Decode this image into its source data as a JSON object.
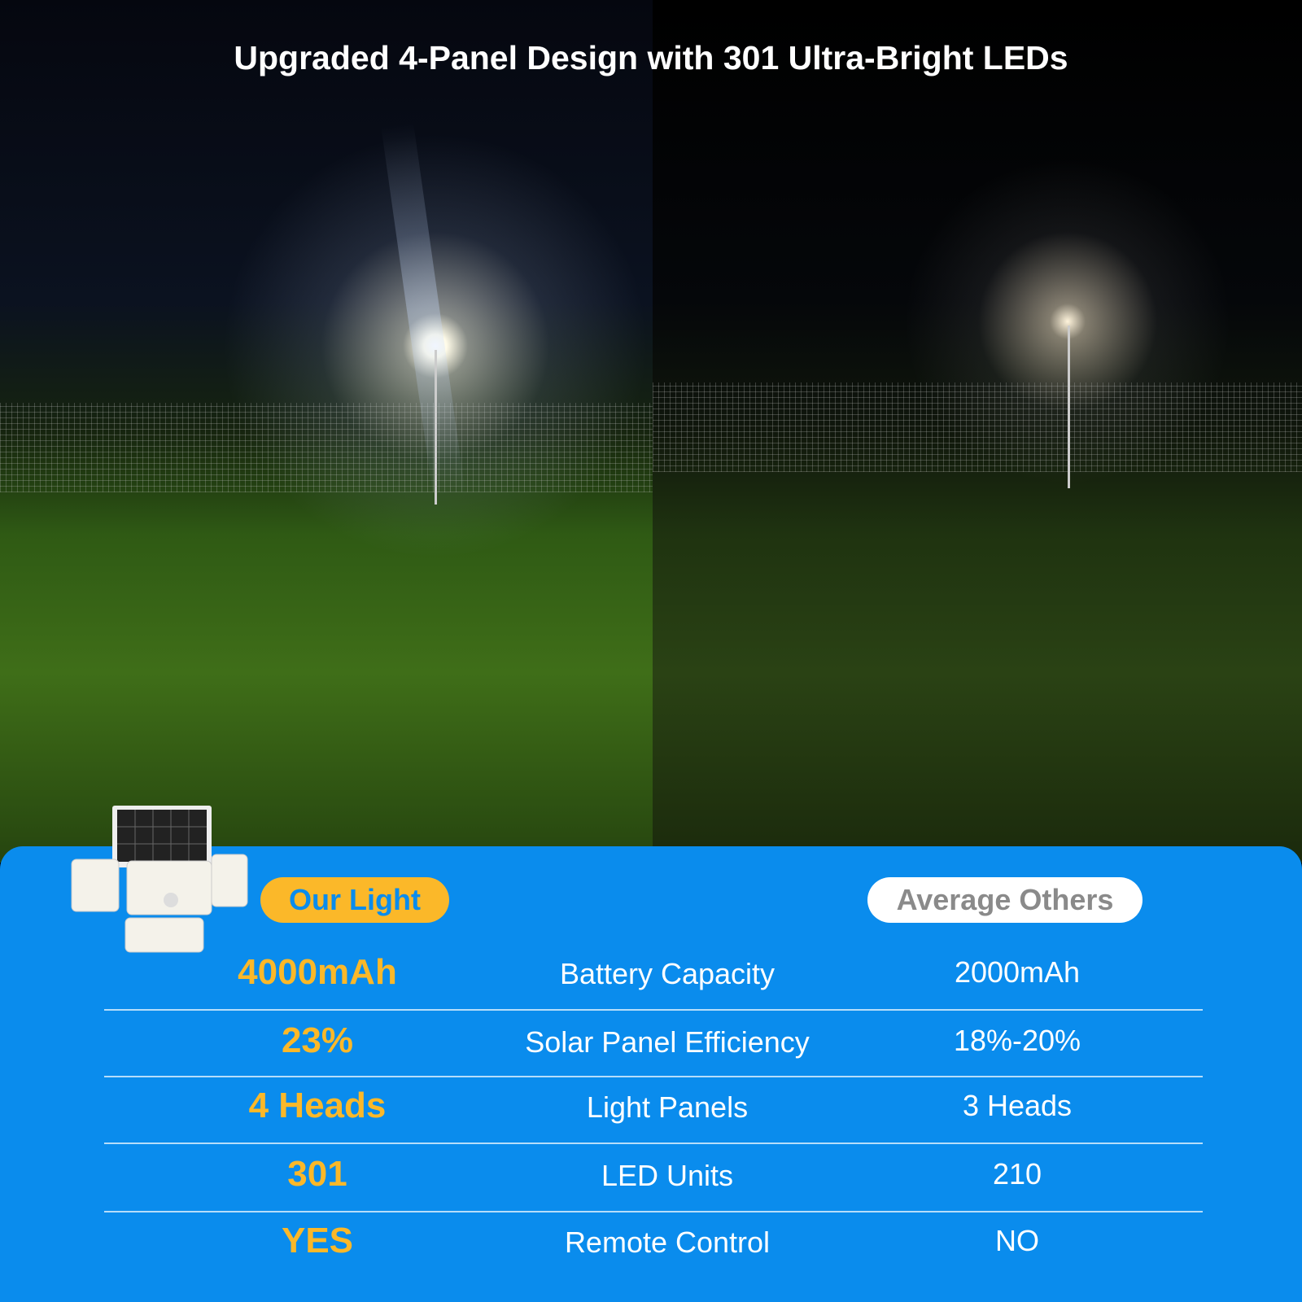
{
  "title": "Upgraded 4-Panel Design with 301 Ultra-Bright LEDs",
  "colors": {
    "panel_blue": "#0a8ced",
    "accent_yellow": "#fbb829"
  },
  "badges": {
    "ours": "Our Light",
    "others": "Average Others"
  },
  "rows": [
    {
      "ours": "4000mAh",
      "feature": "Battery Capacity",
      "others": "2000mAh"
    },
    {
      "ours": "23%",
      "feature": "Solar Panel Efficiency",
      "others": "18%-20%"
    },
    {
      "ours": "4 Heads",
      "feature": "Light Panels",
      "others": "3 Heads"
    },
    {
      "ours": "301",
      "feature": "LED Units",
      "others": "210"
    },
    {
      "ours": "YES",
      "feature": "Remote Control",
      "others": "NO"
    }
  ]
}
